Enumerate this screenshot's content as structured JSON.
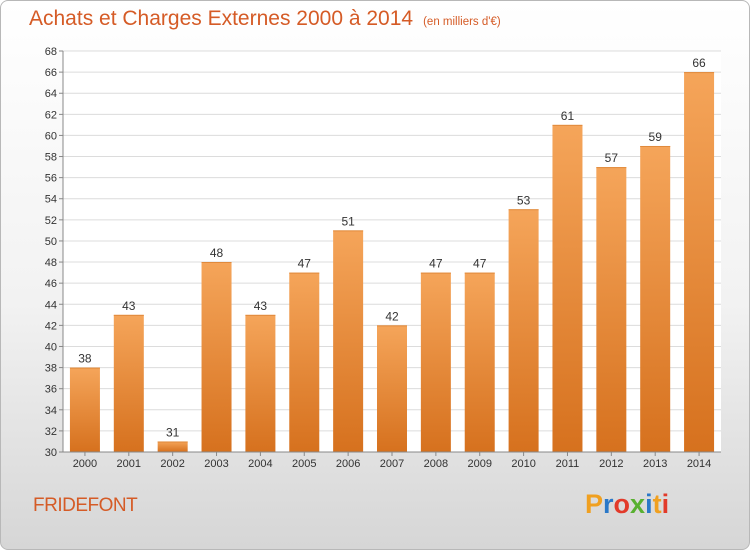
{
  "header": {
    "title": "Achats et Charges Externes 2000 à 2014",
    "unit_note": "(en milliers d'€)"
  },
  "footer": {
    "place_name": "FRIDEFONT",
    "brand_letters": [
      "P",
      "r",
      "o",
      "x",
      "i",
      "t",
      "i"
    ],
    "brand_colors": [
      "#f0a020",
      "#2a78c8",
      "#e23a2a",
      "#58b030",
      "#2a78c8",
      "#f0a020",
      "#e23a2a"
    ]
  },
  "colors": {
    "title": "#d55b26",
    "bar_top": "#f5a55a",
    "bar_bottom": "#d6711e",
    "grid": "#dcdcdc"
  },
  "chart_data": {
    "type": "bar",
    "title": "Achats et Charges Externes 2000 à 2014",
    "subtitle": "(en milliers d'€)",
    "categories": [
      "2000",
      "2001",
      "2002",
      "2003",
      "2004",
      "2005",
      "2006",
      "2007",
      "2008",
      "2009",
      "2010",
      "2011",
      "2012",
      "2013",
      "2014"
    ],
    "values": [
      38,
      43,
      31,
      48,
      43,
      47,
      51,
      42,
      47,
      47,
      53,
      61,
      57,
      59,
      66
    ],
    "ylim": [
      30,
      68
    ],
    "yticks": [
      30,
      32,
      34,
      36,
      38,
      40,
      42,
      44,
      46,
      48,
      50,
      52,
      54,
      56,
      58,
      60,
      62,
      64,
      66,
      68
    ],
    "grid": true,
    "xlabel": "",
    "ylabel": ""
  }
}
